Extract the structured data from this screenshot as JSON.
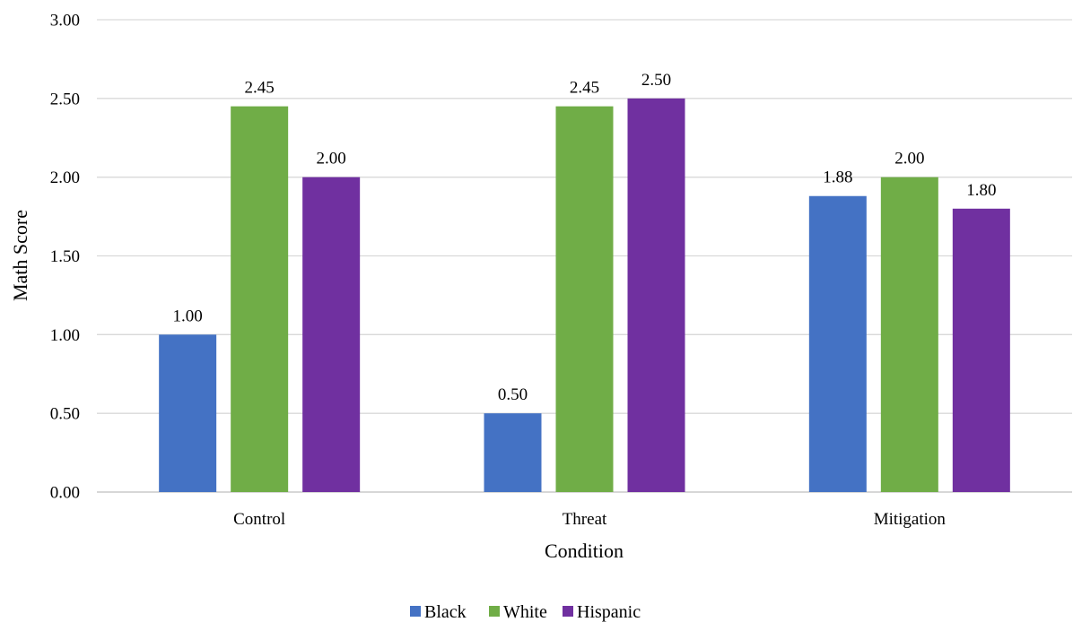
{
  "chart_data": {
    "type": "bar",
    "title": "",
    "xlabel": "Condition",
    "ylabel": "Math Score",
    "categories": [
      "Control",
      "Threat",
      "Mitigation"
    ],
    "series": [
      {
        "name": "Black",
        "color": "#4472c4",
        "values": [
          1.0,
          0.5,
          1.88
        ],
        "labels": [
          "1.00",
          "0.50",
          "1.88"
        ]
      },
      {
        "name": "White",
        "color": "#70ad47",
        "values": [
          2.45,
          2.45,
          2.0
        ],
        "labels": [
          "2.45",
          "2.45",
          "2.00"
        ]
      },
      {
        "name": "Hispanic",
        "color": "#7030a0",
        "values": [
          2.0,
          2.5,
          1.8
        ],
        "labels": [
          "2.00",
          "2.50",
          "1.80"
        ]
      }
    ],
    "ylim": [
      0,
      3
    ],
    "yticks": [
      0,
      0.5,
      1,
      1.5,
      2,
      2.5,
      3
    ],
    "ytick_labels": [
      "0.00",
      "0.50",
      "1.00",
      "1.50",
      "2.00",
      "2.50",
      "3.00"
    ],
    "grid": true,
    "legend_position": "bottom"
  }
}
